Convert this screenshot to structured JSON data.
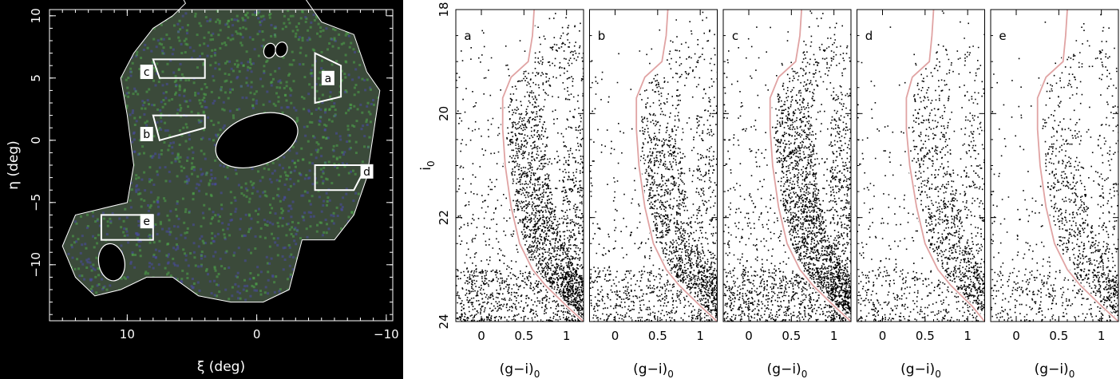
{
  "map_panel": {
    "xlabel": "ξ (deg)",
    "ylabel": "η (deg)",
    "xlim": [
      16,
      -10.5
    ],
    "ylim": [
      -14.5,
      10.5
    ],
    "xticks": [
      10,
      0,
      -10
    ],
    "xtick_labels": [
      "10",
      "0",
      "−10"
    ],
    "yticks": [
      10,
      5,
      0,
      -5,
      -10
    ],
    "ytick_labels": [
      "10",
      "5",
      "0",
      "−5",
      "−10"
    ],
    "colors": {
      "background": "#000000",
      "foreground": "#ffffff",
      "stars_green": "#4fa84a",
      "stars_blue": "#4a4aa6"
    },
    "footprint_outline": [
      [
        6,
        12
      ],
      [
        4,
        13
      ],
      [
        1.5,
        13.5
      ],
      [
        -1,
        13.5
      ],
      [
        -3,
        12.5
      ],
      [
        -5,
        9.5
      ],
      [
        -7.5,
        8.5
      ],
      [
        -8.5,
        5.5
      ],
      [
        -9.5,
        4
      ],
      [
        -9,
        0.5
      ],
      [
        -8.5,
        -3
      ],
      [
        -7.5,
        -6
      ],
      [
        -6,
        -8
      ],
      [
        -3.5,
        -8
      ],
      [
        -2.5,
        -12
      ],
      [
        -0.5,
        -13
      ],
      [
        2,
        -13
      ],
      [
        4.5,
        -12.5
      ],
      [
        6.5,
        -11
      ],
      [
        8.5,
        -11
      ],
      [
        10.5,
        -12
      ],
      [
        12.5,
        -12.5
      ],
      [
        14,
        -11
      ],
      [
        15,
        -8.5
      ],
      [
        14,
        -6
      ],
      [
        12,
        -5.5
      ],
      [
        10,
        -5
      ],
      [
        9.5,
        -2
      ],
      [
        10,
        2
      ],
      [
        10.5,
        5
      ],
      [
        9.5,
        7
      ],
      [
        8,
        9
      ],
      [
        6.5,
        10
      ],
      [
        5.5,
        11
      ]
    ],
    "holes": [
      {
        "center": [
          0,
          0
        ],
        "radii": [
          3.3,
          2
        ],
        "rotation": 20
      },
      {
        "center": [
          11.2,
          -9.8
        ],
        "radii": [
          1,
          1.5
        ],
        "rotation": 10
      },
      {
        "center": [
          -1,
          7.2
        ],
        "radii": [
          0.45,
          0.6
        ],
        "rotation": -15
      },
      {
        "center": [
          -1.9,
          7.3
        ],
        "radii": [
          0.45,
          0.6
        ],
        "rotation": -15
      }
    ],
    "regions": [
      {
        "id": "a",
        "label": "a",
        "corners": [
          [
            -4.5,
            3
          ],
          [
            -6.5,
            3.5
          ],
          [
            -6.5,
            6
          ],
          [
            -4.5,
            7
          ]
        ],
        "label_pos": [
          -5.5,
          5
        ]
      },
      {
        "id": "b",
        "label": "b",
        "corners": [
          [
            4,
            2
          ],
          [
            8,
            2
          ],
          [
            7.5,
            0
          ],
          [
            4,
            1
          ]
        ],
        "label_pos": [
          8.5,
          0.5
        ]
      },
      {
        "id": "c",
        "label": "c",
        "corners": [
          [
            4,
            6.5
          ],
          [
            8,
            6.5
          ],
          [
            7.5,
            5
          ],
          [
            4,
            5
          ]
        ],
        "label_pos": [
          8.5,
          5.5
        ]
      },
      {
        "id": "d",
        "label": "d",
        "corners": [
          [
            -4.5,
            -4
          ],
          [
            -7.5,
            -4
          ],
          [
            -8.5,
            -2
          ],
          [
            -4.5,
            -2
          ]
        ],
        "label_pos": [
          -8.5,
          -2.5
        ]
      },
      {
        "id": "e",
        "label": "e",
        "corners": [
          [
            8,
            -6
          ],
          [
            12,
            -6
          ],
          [
            12,
            -8
          ],
          [
            8,
            -8
          ]
        ],
        "label_pos": [
          8.5,
          -6.5
        ]
      }
    ]
  },
  "chart_data": [
    {
      "type": "scatter",
      "panel_label": "a",
      "xlabel": "(g−i)0",
      "ylabel": "i0",
      "xlim": [
        -0.3,
        1.2
      ],
      "ylim": [
        24,
        18
      ],
      "xticks": [
        0,
        0.5,
        1
      ],
      "yticks": [
        18,
        20,
        22,
        24
      ],
      "ylabel_drawn": true,
      "density": 1.0,
      "isochrone": {
        "color": "#e0a3a3",
        "points": [
          [
            0.62,
            18
          ],
          [
            0.6,
            18.5
          ],
          [
            0.55,
            19
          ],
          [
            0.35,
            19.3
          ],
          [
            0.25,
            19.7
          ],
          [
            0.25,
            20.3
          ],
          [
            0.28,
            21
          ],
          [
            0.35,
            21.8
          ],
          [
            0.45,
            22.5
          ],
          [
            0.6,
            23
          ],
          [
            0.75,
            23.3
          ],
          [
            1.0,
            23.7
          ],
          [
            1.2,
            24
          ]
        ]
      }
    },
    {
      "type": "scatter",
      "panel_label": "b",
      "xlabel": "(g−i)0",
      "ylabel": "",
      "xlim": [
        -0.3,
        1.2
      ],
      "ylim": [
        24,
        18
      ],
      "xticks": [
        0,
        0.5,
        1
      ],
      "yticks": [
        18,
        20,
        22,
        24
      ],
      "ylabel_drawn": false,
      "density": 0.75,
      "isochrone": {
        "color": "#e0a3a3",
        "points": [
          [
            0.62,
            18
          ],
          [
            0.6,
            18.5
          ],
          [
            0.55,
            19
          ],
          [
            0.35,
            19.3
          ],
          [
            0.25,
            19.7
          ],
          [
            0.25,
            20.3
          ],
          [
            0.28,
            21
          ],
          [
            0.35,
            21.8
          ],
          [
            0.45,
            22.5
          ],
          [
            0.6,
            23
          ],
          [
            0.75,
            23.3
          ],
          [
            1.0,
            23.7
          ],
          [
            1.2,
            24
          ]
        ]
      }
    },
    {
      "type": "scatter",
      "panel_label": "c",
      "xlabel": "(g−i)0",
      "ylabel": "",
      "xlim": [
        -0.3,
        1.2
      ],
      "ylim": [
        24,
        18
      ],
      "xticks": [
        0,
        0.5,
        1
      ],
      "yticks": [
        18,
        20,
        22,
        24
      ],
      "ylabel_drawn": false,
      "density": 1.1,
      "isochrone": {
        "color": "#e0a3a3",
        "points": [
          [
            0.62,
            18
          ],
          [
            0.6,
            18.5
          ],
          [
            0.55,
            19
          ],
          [
            0.35,
            19.3
          ],
          [
            0.25,
            19.7
          ],
          [
            0.25,
            20.3
          ],
          [
            0.28,
            21
          ],
          [
            0.35,
            21.8
          ],
          [
            0.45,
            22.5
          ],
          [
            0.6,
            23
          ],
          [
            0.75,
            23.3
          ],
          [
            1.0,
            23.7
          ],
          [
            1.2,
            24
          ]
        ]
      }
    },
    {
      "type": "scatter",
      "panel_label": "d",
      "xlabel": "(g−i)0",
      "ylabel": "",
      "xlim": [
        -0.3,
        1.2
      ],
      "ylim": [
        24,
        18
      ],
      "xticks": [
        0,
        0.5,
        1
      ],
      "yticks": [
        18,
        20,
        22,
        24
      ],
      "ylabel_drawn": false,
      "density": 0.55,
      "isochrone": {
        "color": "#e0a3a3",
        "points": [
          [
            0.6,
            18
          ],
          [
            0.58,
            18.5
          ],
          [
            0.55,
            19
          ],
          [
            0.35,
            19.3
          ],
          [
            0.28,
            19.7
          ],
          [
            0.28,
            20.3
          ],
          [
            0.32,
            21
          ],
          [
            0.4,
            21.8
          ],
          [
            0.5,
            22.5
          ],
          [
            0.65,
            23
          ],
          [
            0.8,
            23.3
          ],
          [
            1.05,
            23.7
          ],
          [
            1.2,
            24
          ]
        ]
      }
    },
    {
      "type": "scatter",
      "panel_label": "e",
      "xlabel": "(g−i)0",
      "ylabel": "",
      "xlim": [
        -0.3,
        1.2
      ],
      "ylim": [
        24,
        18
      ],
      "xticks": [
        0,
        0.5,
        1
      ],
      "yticks": [
        18,
        20,
        22,
        24
      ],
      "ylabel_drawn": false,
      "density": 0.45,
      "isochrone": {
        "color": "#e0a3a3",
        "points": [
          [
            0.6,
            18
          ],
          [
            0.58,
            18.5
          ],
          [
            0.55,
            19
          ],
          [
            0.35,
            19.3
          ],
          [
            0.25,
            19.7
          ],
          [
            0.25,
            20.3
          ],
          [
            0.28,
            21
          ],
          [
            0.35,
            21.8
          ],
          [
            0.45,
            22.5
          ],
          [
            0.6,
            23
          ],
          [
            0.75,
            23.3
          ],
          [
            1.0,
            23.7
          ],
          [
            1.2,
            24
          ]
        ]
      }
    }
  ]
}
